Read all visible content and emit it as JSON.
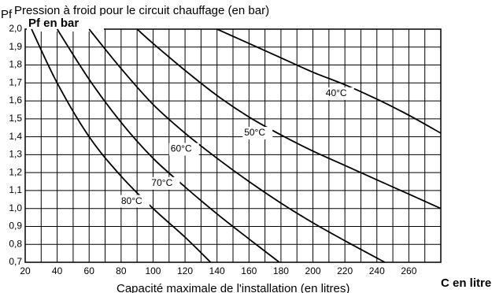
{
  "chart_data": {
    "type": "line",
    "title": "Pression à froid pour le circuit chauffage (en bar)",
    "corner_label": "Pf",
    "y_axis_label": "Pf en bar",
    "x_axis_label": "Capacité maximale de l'installation (en litres)",
    "x_unit_label": "C en litre",
    "xlim": [
      20,
      280
    ],
    "ylim": [
      0.7,
      2.0
    ],
    "xticks": [
      20,
      40,
      60,
      80,
      100,
      120,
      140,
      160,
      180,
      200,
      220,
      240,
      260
    ],
    "xgrid": [
      30,
      50,
      70,
      90,
      110,
      130,
      150,
      170,
      190,
      210,
      230,
      250,
      270,
      280
    ],
    "yticks": [
      {
        "value": 0.7,
        "label": "0,7"
      },
      {
        "value": 0.8,
        "label": "0,8"
      },
      {
        "value": 0.9,
        "label": "0,9"
      },
      {
        "value": 1.0,
        "label": "1,0"
      },
      {
        "value": 1.1,
        "label": "1,1"
      },
      {
        "value": 1.2,
        "label": "1,2"
      },
      {
        "value": 1.3,
        "label": "1,3"
      },
      {
        "value": 1.4,
        "label": "1,4"
      },
      {
        "value": 1.5,
        "label": "1,5"
      },
      {
        "value": 1.6,
        "label": "1,6"
      },
      {
        "value": 1.7,
        "label": "1,7"
      },
      {
        "value": 1.8,
        "label": "1,8"
      },
      {
        "value": 1.9,
        "label": "1,9"
      },
      {
        "value": 2.0,
        "label": "2,0"
      }
    ],
    "grid": true,
    "series": [
      {
        "name": "80°C",
        "color": "#000000",
        "label_at": [
          80,
          1.04
        ],
        "x": [
          24,
          40,
          60,
          80,
          100,
          120,
          136
        ],
        "values": [
          2.0,
          1.7,
          1.4,
          1.18,
          1.0,
          0.84,
          0.7
        ]
      },
      {
        "name": "70°C",
        "color": "#000000",
        "label_at": [
          99,
          1.14
        ],
        "x": [
          40,
          60,
          80,
          100,
          120,
          140,
          160,
          179
        ],
        "values": [
          2.0,
          1.72,
          1.48,
          1.28,
          1.12,
          0.97,
          0.83,
          0.7
        ]
      },
      {
        "name": "60°C",
        "color": "#000000",
        "label_at": [
          111,
          1.33
        ],
        "x": [
          60,
          80,
          100,
          120,
          140,
          160,
          180,
          200,
          220,
          245
        ],
        "values": [
          2.0,
          1.78,
          1.58,
          1.42,
          1.28,
          1.15,
          1.03,
          0.92,
          0.82,
          0.7
        ]
      },
      {
        "name": "50°C",
        "color": "#000000",
        "label_at": [
          157,
          1.42
        ],
        "x": [
          90,
          100,
          120,
          140,
          160,
          180,
          200,
          220,
          240,
          260,
          280
        ],
        "values": [
          2.0,
          1.92,
          1.77,
          1.63,
          1.51,
          1.41,
          1.32,
          1.24,
          1.16,
          1.08,
          1.0
        ]
      },
      {
        "name": "40°C",
        "color": "#000000",
        "label_at": [
          208,
          1.64
        ],
        "x": [
          140,
          160,
          180,
          200,
          220,
          240,
          260,
          280
        ],
        "values": [
          2.0,
          1.92,
          1.84,
          1.76,
          1.69,
          1.61,
          1.52,
          1.42
        ]
      }
    ]
  }
}
